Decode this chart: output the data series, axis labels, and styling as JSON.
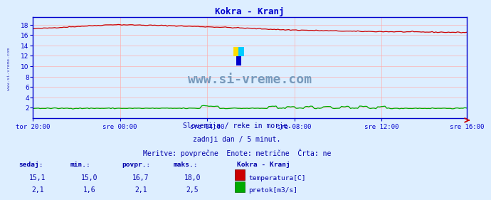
{
  "title": "Kokra - Kranj",
  "title_color": "#0000cc",
  "bg_color": "#ddeeff",
  "plot_bg_color": "#ddeeff",
  "grid_color": "#ffaaaa",
  "x_labels": [
    "tor 20:00",
    "sre 00:00",
    "sre 04:00",
    "sre 08:00",
    "sre 12:00",
    "sre 16:00"
  ],
  "x_ticks_pos": [
    0,
    48,
    96,
    144,
    192,
    239
  ],
  "y_ticks": [
    2,
    4,
    6,
    8,
    10,
    12,
    14,
    16,
    18
  ],
  "ylim": [
    0,
    19.5
  ],
  "xlim": [
    0,
    239
  ],
  "temp_color": "#cc0000",
  "flow_color": "#00aa00",
  "axis_line_color": "#0000cc",
  "watermark_text": "www.si-vreme.com",
  "watermark_color": "#7799bb",
  "info_line1": "Slovenija / reke in morje.",
  "info_line2": "zadnji dan / 5 minut.",
  "info_line3": "Meritve: povprečne  Enote: metrične  Črta: ne",
  "info_color": "#0000aa",
  "table_headers": [
    "sedaj:",
    "min.:",
    "povpr.:",
    "maks.:"
  ],
  "table_temp": [
    "15,1",
    "15,0",
    "16,7",
    "18,0"
  ],
  "table_flow": [
    "2,1",
    "1,6",
    "2,1",
    "2,5"
  ],
  "table_label": "Kokra - Kranj",
  "table_label2a": "temperatura[C]",
  "table_label2b": "pretok[m3/s]",
  "table_color": "#0000aa",
  "left_label_color": "#0000aa",
  "left_label": "www.si-vreme.com",
  "n_points": 240
}
